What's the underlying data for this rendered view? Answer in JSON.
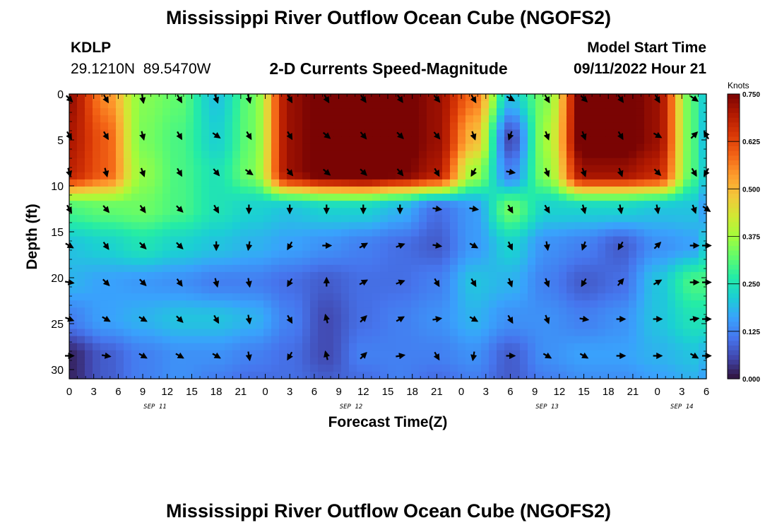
{
  "header": {
    "title_top": "Mississippi River Outflow Ocean Cube (NGOFS2)",
    "station_id": "KDLP",
    "station_coords": "29.1210N  89.5470W",
    "subtitle": "2-D Currents Speed-Magnitude",
    "model_start_label": "Model Start Time",
    "model_start_value": "09/11/2022 Hour 21",
    "title_bottom": "Mississippi River Outflow Ocean Cube (NGOFS2)"
  },
  "colors": {
    "colormap": [
      "#30123b",
      "#4145ab",
      "#4675ed",
      "#39a2fc",
      "#1bcfd4",
      "#24eca6",
      "#61fc6c",
      "#a4fc3b",
      "#d1e834",
      "#f3c63a",
      "#fe9b2d",
      "#f36315",
      "#d93806",
      "#b11901",
      "#7a0403"
    ]
  },
  "chart_data": {
    "type": "heatmap",
    "title": "2-D Currents Speed-Magnitude",
    "xlabel": "Forecast Time(Z)",
    "ylabel": "Depth (ft)",
    "x_ticks": [
      "0",
      "3",
      "6",
      "9",
      "12",
      "15",
      "18",
      "21",
      "0",
      "3",
      "6",
      "9",
      "12",
      "15",
      "18",
      "21",
      "0",
      "3",
      "6",
      "9",
      "12",
      "15",
      "18",
      "21",
      "0",
      "3",
      "6"
    ],
    "x_range_hours": [
      0,
      78
    ],
    "date_labels": [
      {
        "text": "SEP 11",
        "hour": 10.5
      },
      {
        "text": "SEP 12",
        "hour": 34.5
      },
      {
        "text": "SEP 13",
        "hour": 58.5
      },
      {
        "text": "SEP 14",
        "hour": 75
      }
    ],
    "y_ticks": [
      0,
      5,
      10,
      15,
      20,
      25,
      30
    ],
    "ylim": [
      0,
      31
    ],
    "y_inverted": true,
    "colorbar": {
      "label": "Knots",
      "ticks": [
        "0.000",
        "0.125",
        "0.250",
        "0.375",
        "0.500",
        "0.625",
        "0.750"
      ],
      "range": [
        0,
        0.75
      ]
    },
    "grid_hours": [
      0,
      4.5,
      9,
      13.5,
      18,
      22.5,
      27,
      31.5,
      36,
      40.5,
      45,
      49.5,
      54,
      58.5,
      63,
      67.5,
      72,
      76.5,
      78
    ],
    "grid_depths": [
      0,
      5,
      8.5,
      12.5,
      16.5,
      20.5,
      24.5,
      28.5,
      31
    ],
    "speed_knots": [
      [
        0.72,
        0.55,
        0.35,
        0.32,
        0.2,
        0.33,
        0.72,
        0.78,
        0.8,
        0.78,
        0.72,
        0.58,
        0.2,
        0.35,
        0.78,
        0.78,
        0.72,
        0.3,
        0.2
      ],
      [
        0.7,
        0.6,
        0.34,
        0.3,
        0.22,
        0.33,
        0.72,
        0.78,
        0.8,
        0.78,
        0.72,
        0.5,
        0.06,
        0.38,
        0.78,
        0.78,
        0.72,
        0.3,
        0.18
      ],
      [
        0.68,
        0.6,
        0.36,
        0.3,
        0.25,
        0.34,
        0.72,
        0.78,
        0.8,
        0.76,
        0.7,
        0.38,
        0.12,
        0.36,
        0.72,
        0.72,
        0.68,
        0.3,
        0.2
      ],
      [
        0.3,
        0.32,
        0.33,
        0.3,
        0.25,
        0.22,
        0.2,
        0.22,
        0.22,
        0.18,
        0.1,
        0.15,
        0.33,
        0.22,
        0.22,
        0.22,
        0.2,
        0.2,
        0.15
      ],
      [
        0.2,
        0.22,
        0.25,
        0.22,
        0.2,
        0.18,
        0.16,
        0.14,
        0.12,
        0.1,
        0.08,
        0.15,
        0.22,
        0.14,
        0.12,
        0.08,
        0.14,
        0.16,
        0.22
      ],
      [
        0.18,
        0.16,
        0.15,
        0.14,
        0.12,
        0.12,
        0.1,
        0.08,
        0.1,
        0.1,
        0.12,
        0.2,
        0.18,
        0.12,
        0.08,
        0.1,
        0.2,
        0.3,
        0.3
      ],
      [
        0.12,
        0.16,
        0.18,
        0.2,
        0.2,
        0.18,
        0.12,
        0.06,
        0.1,
        0.12,
        0.14,
        0.18,
        0.14,
        0.14,
        0.12,
        0.14,
        0.2,
        0.25,
        0.25
      ],
      [
        0.02,
        0.08,
        0.12,
        0.14,
        0.14,
        0.12,
        0.1,
        0.06,
        0.12,
        0.12,
        0.12,
        0.14,
        0.08,
        0.14,
        0.16,
        0.16,
        0.18,
        0.2,
        0.18
      ],
      [
        0.02,
        0.08,
        0.12,
        0.14,
        0.12,
        0.1,
        0.1,
        0.08,
        0.1,
        0.12,
        0.1,
        0.12,
        0.08,
        0.12,
        0.14,
        0.14,
        0.16,
        0.18,
        0.16
      ]
    ],
    "vector_hours": [
      0,
      4.5,
      9,
      13.5,
      18,
      22,
      27,
      31.5,
      36,
      40.5,
      45,
      49.5,
      54,
      58.5,
      63,
      67.5,
      72,
      76.5,
      78
    ],
    "vector_depths": [
      0.5,
      4.5,
      8.5,
      12.5,
      16.5,
      20.5,
      24.5,
      28.5
    ],
    "vector_direction_deg": [
      [
        135,
        150,
        170,
        150,
        160,
        165,
        150,
        150,
        145,
        145,
        140,
        150,
        120,
        150,
        135,
        145,
        150,
        125,
        null
      ],
      [
        150,
        150,
        165,
        150,
        125,
        150,
        150,
        130,
        140,
        135,
        140,
        160,
        200,
        160,
        160,
        150,
        120,
        45,
        330
      ],
      [
        165,
        165,
        160,
        150,
        140,
        125,
        140,
        130,
        135,
        140,
        150,
        210,
        100,
        160,
        160,
        160,
        135,
        150,
        210
      ],
      [
        150,
        140,
        145,
        135,
        150,
        180,
        180,
        180,
        180,
        180,
        100,
        100,
        150,
        150,
        165,
        170,
        170,
        160,
        125
      ],
      [
        120,
        145,
        135,
        135,
        180,
        190,
        210,
        90,
        60,
        70,
        100,
        120,
        155,
        170,
        200,
        210,
        45,
        90,
        90
      ],
      [
        100,
        135,
        135,
        145,
        165,
        170,
        210,
        0,
        60,
        70,
        150,
        150,
        160,
        160,
        210,
        40,
        60,
        90,
        90
      ],
      [
        110,
        120,
        120,
        135,
        150,
        170,
        150,
        345,
        45,
        60,
        80,
        120,
        150,
        160,
        100,
        90,
        90,
        80,
        90
      ],
      [
        90,
        100,
        120,
        120,
        120,
        170,
        210,
        345,
        45,
        80,
        150,
        190,
        90,
        120,
        120,
        90,
        90,
        120,
        90
      ]
    ]
  }
}
